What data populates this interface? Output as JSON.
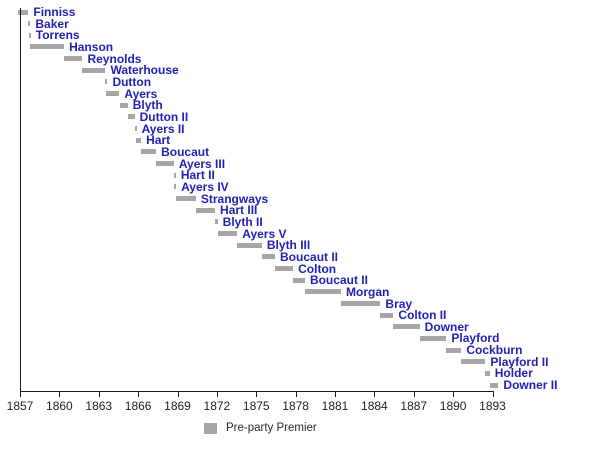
{
  "chart_data": {
    "type": "bar",
    "variant": "gantt-timeline",
    "title": "",
    "xlabel": "",
    "ylabel": "",
    "xlim": [
      1857,
      1893
    ],
    "x_ticks": [
      1857,
      1860,
      1863,
      1866,
      1869,
      1872,
      1875,
      1878,
      1881,
      1884,
      1887,
      1890,
      1893
    ],
    "grid": false,
    "legend_position": "bottom-center",
    "legend": [
      {
        "label": "Pre-party Premier",
        "color": "#a6a6a6"
      }
    ],
    "bar_color": "#a6a6a6",
    "label_color": "#2121b5",
    "series": [
      {
        "name": "Finniss",
        "start": 1856.81,
        "end": 1857.64
      },
      {
        "name": "Baker",
        "start": 1857.64,
        "end": 1857.67
      },
      {
        "name": "Torrens",
        "start": 1857.67,
        "end": 1857.75
      },
      {
        "name": "Hanson",
        "start": 1857.75,
        "end": 1860.36
      },
      {
        "name": "Reynolds",
        "start": 1860.36,
        "end": 1861.76
      },
      {
        "name": "Waterhouse",
        "start": 1861.76,
        "end": 1863.51
      },
      {
        "name": "Dutton",
        "start": 1863.51,
        "end": 1863.54
      },
      {
        "name": "Ayers",
        "start": 1863.54,
        "end": 1864.57
      },
      {
        "name": "Blyth",
        "start": 1864.59,
        "end": 1865.21
      },
      {
        "name": "Dutton II",
        "start": 1865.21,
        "end": 1865.73
      },
      {
        "name": "Ayers II",
        "start": 1865.73,
        "end": 1865.8
      },
      {
        "name": "Hart",
        "start": 1865.8,
        "end": 1866.23
      },
      {
        "name": "Boucaut",
        "start": 1866.23,
        "end": 1867.37
      },
      {
        "name": "Ayers III",
        "start": 1867.37,
        "end": 1868.72
      },
      {
        "name": "Hart II",
        "start": 1868.72,
        "end": 1868.74
      },
      {
        "name": "Ayers IV",
        "start": 1868.74,
        "end": 1868.86
      },
      {
        "name": "Strangways",
        "start": 1868.86,
        "end": 1870.4
      },
      {
        "name": "Hart III",
        "start": 1870.4,
        "end": 1871.86
      },
      {
        "name": "Blyth II",
        "start": 1871.86,
        "end": 1872.06
      },
      {
        "name": "Ayers V",
        "start": 1872.06,
        "end": 1873.55
      },
      {
        "name": "Blyth III",
        "start": 1873.55,
        "end": 1875.43
      },
      {
        "name": "Boucaut II",
        "start": 1875.43,
        "end": 1876.43
      },
      {
        "name": "Colton",
        "start": 1876.43,
        "end": 1877.81
      },
      {
        "name": "Boucaut II",
        "start": 1877.81,
        "end": 1878.71
      },
      {
        "name": "Morgan",
        "start": 1878.71,
        "end": 1881.46
      },
      {
        "name": "Bray",
        "start": 1881.46,
        "end": 1884.46
      },
      {
        "name": "Colton II",
        "start": 1884.46,
        "end": 1885.45
      },
      {
        "name": "Downer",
        "start": 1885.45,
        "end": 1887.45
      },
      {
        "name": "Playford",
        "start": 1887.45,
        "end": 1889.49
      },
      {
        "name": "Cockburn",
        "start": 1889.49,
        "end": 1890.63
      },
      {
        "name": "Playford II",
        "start": 1890.63,
        "end": 1892.46
      },
      {
        "name": "Holder",
        "start": 1892.46,
        "end": 1892.79
      },
      {
        "name": "Downer II",
        "start": 1892.79,
        "end": 1893.45
      }
    ]
  },
  "layout_hints": {
    "axis_color": "#1a1a1a",
    "background": "#ffffff"
  }
}
